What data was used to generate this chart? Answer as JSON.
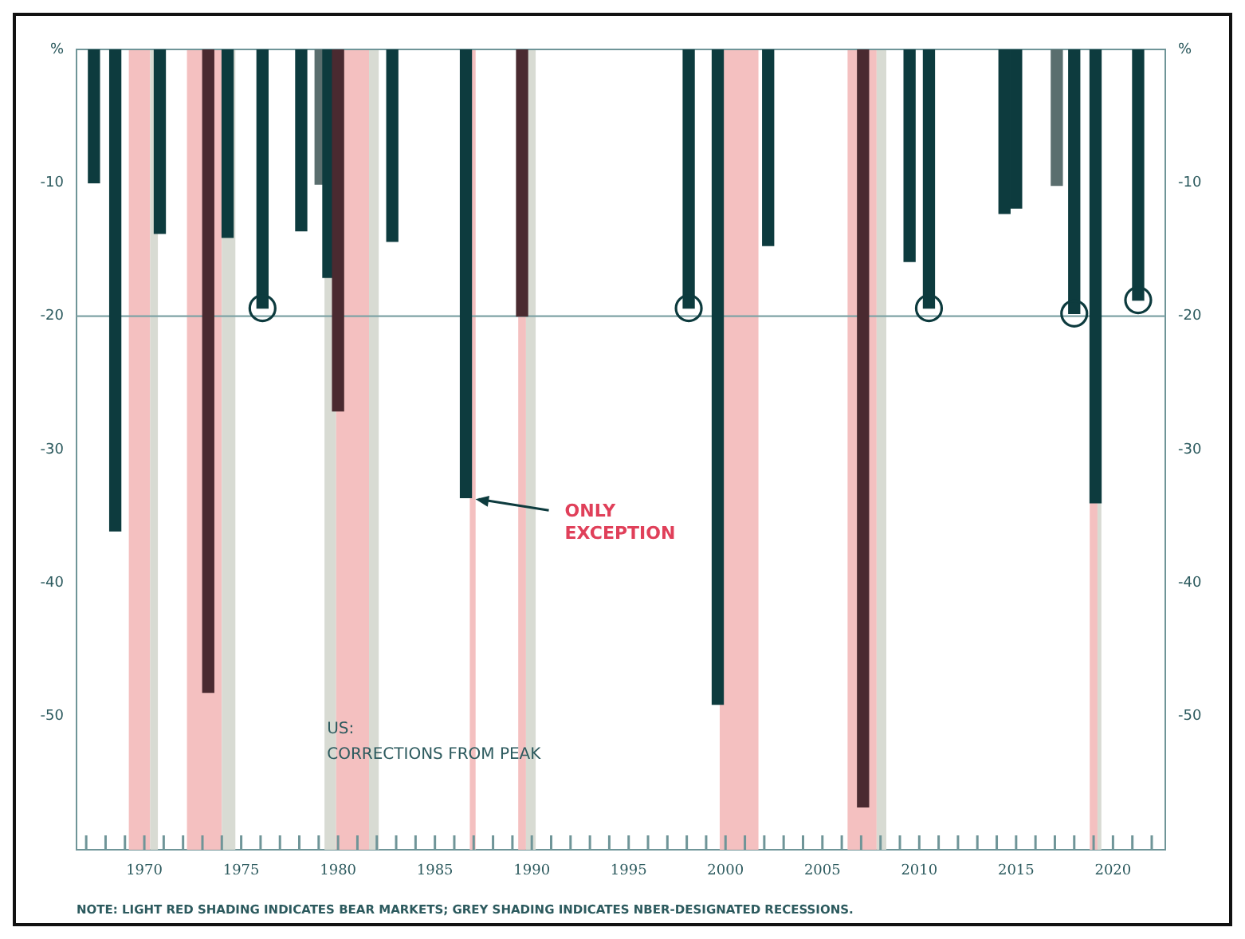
{
  "chart_data": {
    "type": "bar",
    "title": "US:",
    "subtitle": "CORRECTIONS FROM PEAK",
    "xlim": [
      1966.5,
      2022.7
    ],
    "xticks": [
      {
        "value": 1967,
        "label": null
      },
      {
        "value": 1968,
        "label": null
      },
      {
        "value": 1969,
        "label": null
      },
      1970,
      {
        "value": 1971,
        "label": null
      },
      {
        "value": 1972,
        "label": null
      },
      {
        "value": 1973,
        "label": null
      },
      {
        "value": 1974,
        "label": null
      },
      1975,
      {
        "value": 1976,
        "label": null
      },
      {
        "value": 1977,
        "label": null
      },
      {
        "value": 1978,
        "label": null
      },
      {
        "value": 1979,
        "label": null
      },
      1980,
      {
        "value": 1981,
        "label": null
      },
      {
        "value": 1982,
        "label": null
      },
      {
        "value": 1983,
        "label": null
      },
      {
        "value": 1984,
        "label": null
      },
      1985,
      {
        "value": 1986,
        "label": null
      },
      {
        "value": 1987,
        "label": null
      },
      {
        "value": 1988,
        "label": null
      },
      {
        "value": 1989,
        "label": null
      },
      1990,
      {
        "value": 1991,
        "label": null
      },
      {
        "value": 1992,
        "label": null
      },
      {
        "value": 1993,
        "label": null
      },
      {
        "value": 1994,
        "label": null
      },
      1995,
      {
        "value": 1996,
        "label": null
      },
      {
        "value": 1997,
        "label": null
      },
      {
        "value": 1998,
        "label": null
      },
      {
        "value": 1999,
        "label": null
      },
      2000,
      {
        "value": 2001,
        "label": null
      },
      {
        "value": 2002,
        "label": null
      },
      {
        "value": 2003,
        "label": null
      },
      {
        "value": 2004,
        "label": null
      },
      2005,
      {
        "value": 2006,
        "label": null
      },
      {
        "value": 2007,
        "label": null
      },
      {
        "value": 2008,
        "label": null
      },
      {
        "value": 2009,
        "label": null
      },
      2010,
      {
        "value": 2011,
        "label": null
      },
      {
        "value": 2012,
        "label": null
      },
      {
        "value": 2013,
        "label": null
      },
      {
        "value": 2014,
        "label": null
      },
      2015,
      {
        "value": 2016,
        "label": null
      },
      {
        "value": 2017,
        "label": null
      },
      {
        "value": 2018,
        "label": null
      },
      {
        "value": 2019,
        "label": null
      },
      2020,
      {
        "value": 2021,
        "label": null
      },
      {
        "value": 2022,
        "label": null
      }
    ],
    "ylim": [
      -60,
      0
    ],
    "yticks": [
      -50,
      -40,
      -30,
      -20,
      -10,
      {
        "value": 0,
        "label": "%"
      }
    ],
    "y2lim": [
      -60,
      0
    ],
    "y2ticks": [
      -50,
      -40,
      -30,
      -20,
      -10,
      {
        "value": 0,
        "label": "%"
      }
    ],
    "grid": false,
    "legend": false,
    "series": [
      {
        "type": "bar",
        "x": [
          1967.4,
          1968.5,
          1970.8,
          1973.3,
          1974.3,
          1976.1,
          1978.1,
          1979.1,
          1979.5,
          1980.0,
          1982.8,
          1986.6,
          1989.5,
          1998.1,
          1999.6,
          2002.2,
          2007.1,
          2009.5,
          2010.5,
          2014.4,
          2015.0,
          2017.1,
          2018.0,
          2019.1,
          2021.3
        ],
        "values": [
          -10.0,
          -36.1,
          -13.8,
          -48.2,
          -14.1,
          -19.4,
          -13.6,
          -10.1,
          -17.1,
          -27.1,
          -14.4,
          -33.6,
          -20.0,
          -19.4,
          -49.1,
          -14.7,
          -56.8,
          -15.9,
          -19.4,
          -12.3,
          -11.9,
          -10.2,
          -19.8,
          -34.0,
          -18.8
        ],
        "colors": [
          "#0d3b3e",
          "#0d3b3e",
          "#0d3b3e",
          "#4a2a30",
          "#0d3b3e",
          "#0d3b3e",
          "#0d3b3e",
          "#5a6e6e",
          "#0d3b3e",
          "#4a2a30",
          "#0d3b3e",
          "#0d3b3e",
          "#4a2a30",
          "#0d3b3e",
          "#0d3b3e",
          "#0d3b3e",
          "#4a2a30",
          "#0d3b3e",
          "#0d3b3e",
          "#0d3b3e",
          "#0d3b3e",
          "#5a6e6e",
          "#0d3b3e",
          "#0d3b3e",
          "#0d3b3e"
        ]
      },
      {
        "type": "scatter",
        "x": [
          1976.1,
          1998.1,
          2010.5,
          2018.0,
          2021.3
        ],
        "values": [
          -19.4,
          -19.4,
          -19.4,
          -19.8,
          -18.8
        ],
        "color": "#0d3b3e",
        "marker": "circle"
      }
    ],
    "ref_lines": [
      {
        "axis": "y",
        "value": -20,
        "color": "#7fa3a6"
      }
    ],
    "bands": [
      {
        "axis": "x",
        "from": 1969.2,
        "to": 1970.3,
        "color": "#f4c0c0"
      },
      {
        "axis": "x",
        "from": 1970.3,
        "to": 1970.7,
        "color": "#d8dbd3"
      },
      {
        "axis": "x",
        "from": 1972.2,
        "to": 1974.0,
        "color": "#f4c0c0"
      },
      {
        "axis": "x",
        "from": 1974.0,
        "to": 1974.7,
        "color": "#d8dbd3"
      },
      {
        "axis": "x",
        "from": 1979.3,
        "to": 1979.9,
        "color": "#d8dbd3"
      },
      {
        "axis": "x",
        "from": 1979.9,
        "to": 1981.6,
        "color": "#f4c0c0"
      },
      {
        "axis": "x",
        "from": 1981.6,
        "to": 1982.1,
        "color": "#d8dbd3"
      },
      {
        "axis": "x",
        "from": 1986.8,
        "to": 1987.1,
        "color": "#f4c0c0"
      },
      {
        "axis": "x",
        "from": 1989.3,
        "to": 1989.7,
        "color": "#f4c0c0"
      },
      {
        "axis": "x",
        "from": 1989.7,
        "to": 1990.2,
        "color": "#d8dbd3"
      },
      {
        "axis": "x",
        "from": 1999.7,
        "to": 2001.7,
        "color": "#f4c0c0"
      },
      {
        "axis": "x",
        "from": 2006.3,
        "to": 2007.8,
        "color": "#f4c0c0"
      },
      {
        "axis": "x",
        "from": 2007.8,
        "to": 2008.3,
        "color": "#d8dbd3"
      },
      {
        "axis": "x",
        "from": 2018.8,
        "to": 2019.2,
        "color": "#f4c0c0"
      },
      {
        "axis": "x",
        "from": 2019.2,
        "to": 2019.4,
        "color": "#d8dbd3"
      }
    ],
    "annotations": [
      {
        "text": "ONLY EXCEPTION",
        "x": 1986.6,
        "y": -33.6
      },
      "NOTE: LIGHT RED SHADING INDICATES BEAR MARKETS; GREY SHADING INDICATES NBER-DESIGNATED RECESSIONS."
    ]
  }
}
